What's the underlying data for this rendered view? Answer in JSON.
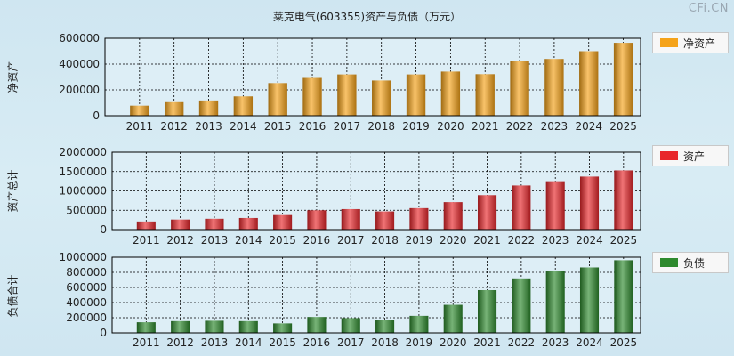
{
  "title": "莱克电气(603355)资产与负债（万元）",
  "watermark": "CFi.CN",
  "chart_data": [
    {
      "type": "bar",
      "ylabel": "净资产",
      "legend": "净资产",
      "color": "#f5a31a",
      "ylim": [
        0,
        600000
      ],
      "yticks": [
        0,
        200000,
        400000,
        600000
      ],
      "categories": [
        "2011",
        "2012",
        "2013",
        "2014",
        "2015",
        "2016",
        "2017",
        "2018",
        "2019",
        "2020",
        "2021",
        "2022",
        "2023",
        "2024",
        "2025"
      ],
      "values": [
        78000,
        105000,
        118000,
        150000,
        253000,
        293000,
        320000,
        273000,
        320000,
        342000,
        322000,
        425000,
        440000,
        500000,
        565000
      ]
    },
    {
      "type": "bar",
      "ylabel": "资产总计",
      "legend": "资产",
      "color": "#e8272b",
      "ylim": [
        0,
        2000000
      ],
      "yticks": [
        0,
        500000,
        1000000,
        1500000,
        2000000
      ],
      "categories": [
        "2011",
        "2012",
        "2013",
        "2014",
        "2015",
        "2016",
        "2017",
        "2018",
        "2019",
        "2020",
        "2021",
        "2022",
        "2023",
        "2024",
        "2025"
      ],
      "values": [
        210000,
        260000,
        280000,
        300000,
        375000,
        500000,
        530000,
        470000,
        555000,
        710000,
        890000,
        1140000,
        1250000,
        1370000,
        1530000
      ]
    },
    {
      "type": "bar",
      "ylabel": "负债合计",
      "legend": "负债",
      "color": "#2e8a2e",
      "ylim": [
        0,
        1000000
      ],
      "yticks": [
        0,
        200000,
        400000,
        600000,
        800000,
        1000000
      ],
      "categories": [
        "2011",
        "2012",
        "2013",
        "2014",
        "2015",
        "2016",
        "2017",
        "2018",
        "2019",
        "2020",
        "2021",
        "2022",
        "2023",
        "2024",
        "2025"
      ],
      "values": [
        140000,
        155000,
        160000,
        155000,
        125000,
        210000,
        195000,
        175000,
        225000,
        370000,
        565000,
        720000,
        820000,
        865000,
        960000
      ]
    }
  ]
}
